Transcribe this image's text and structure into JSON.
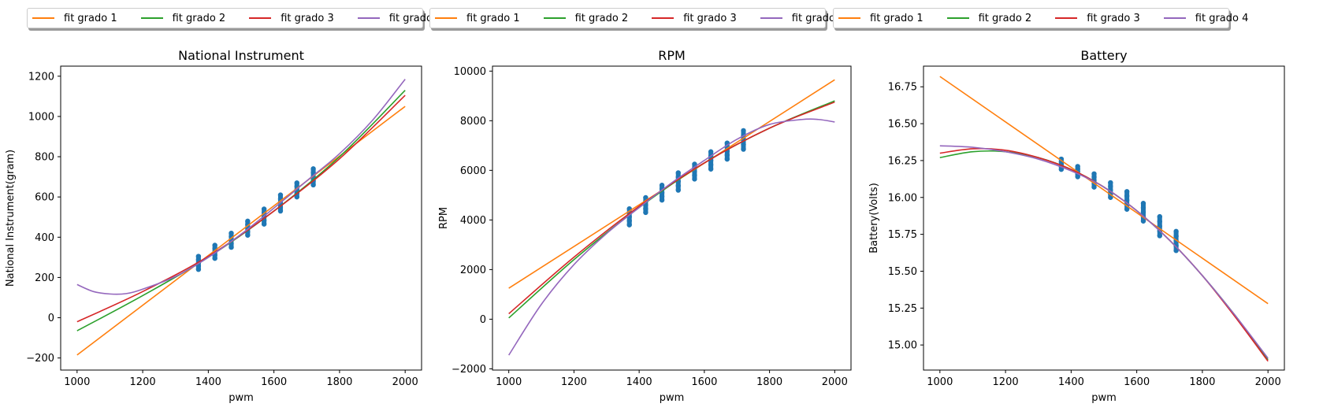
{
  "legend": {
    "entries": [
      {
        "label": "fit grado 1",
        "color": "#ff7f0e"
      },
      {
        "label": "fit grado 2",
        "color": "#2ca02c"
      },
      {
        "label": "fit grado 3",
        "color": "#d62728"
      },
      {
        "label": "fit grado 4",
        "color": "#9467bd"
      }
    ]
  },
  "chart_data": [
    {
      "type": "scatter+line",
      "title": "National Instrument",
      "xlabel": "pwm",
      "ylabel": "National Instrument(gram)",
      "xlim": [
        950,
        2050
      ],
      "ylim": [
        -260,
        1250
      ],
      "xticks": [
        1000,
        1200,
        1400,
        1600,
        1800,
        2000
      ],
      "yticks": [
        -200,
        0,
        200,
        400,
        600,
        800,
        1000,
        1200
      ],
      "scatter": {
        "color": "#1f77b4",
        "x": [
          1370,
          1420,
          1470,
          1520,
          1570,
          1620,
          1670,
          1720
        ],
        "ymin": [
          240,
          295,
          350,
          410,
          465,
          530,
          600,
          660
        ],
        "ymax": [
          305,
          360,
          420,
          480,
          540,
          610,
          670,
          740
        ]
      },
      "series": [
        {
          "name": "fit grado 1",
          "color": "#ff7f0e",
          "x": [
            1000,
            2000
          ],
          "y": [
            -185,
            1050
          ]
        },
        {
          "name": "fit grado 2",
          "color": "#2ca02c",
          "x": [
            1000,
            1200,
            1400,
            1600,
            1800,
            2000
          ],
          "y": [
            -65,
            110,
            300,
            530,
            800,
            1130
          ]
        },
        {
          "name": "fit grado 3",
          "color": "#d62728",
          "x": [
            1000,
            1200,
            1400,
            1600,
            1800,
            2000
          ],
          "y": [
            -20,
            130,
            305,
            530,
            790,
            1105
          ]
        },
        {
          "name": "fit grado 4",
          "color": "#9467bd",
          "x": [
            1000,
            1050,
            1100,
            1150,
            1200,
            1300,
            1400,
            1500,
            1600,
            1700,
            1800,
            1900,
            2000
          ],
          "y": [
            165,
            130,
            118,
            120,
            142,
            205,
            300,
            415,
            545,
            680,
            815,
            980,
            1185
          ]
        }
      ]
    },
    {
      "type": "scatter+line",
      "title": "RPM",
      "xlabel": "pwm",
      "ylabel": "RPM",
      "xlim": [
        950,
        2050
      ],
      "ylim": [
        -2050,
        10200
      ],
      "xticks": [
        1000,
        1200,
        1400,
        1600,
        1800,
        2000
      ],
      "yticks": [
        -2000,
        0,
        2000,
        4000,
        6000,
        8000,
        10000
      ],
      "scatter": {
        "color": "#1f77b4",
        "x": [
          1370,
          1420,
          1470,
          1520,
          1570,
          1620,
          1670,
          1720
        ],
        "ymin": [
          3800,
          4300,
          4800,
          5200,
          5650,
          6050,
          6450,
          6850
        ],
        "ymax": [
          4450,
          4900,
          5400,
          5900,
          6250,
          6750,
          7100,
          7600
        ]
      },
      "series": [
        {
          "name": "fit grado 1",
          "color": "#ff7f0e",
          "x": [
            1000,
            2000
          ],
          "y": [
            1250,
            9650
          ]
        },
        {
          "name": "fit grado 2",
          "color": "#2ca02c",
          "x": [
            1000,
            1200,
            1400,
            1600,
            1800,
            2000
          ],
          "y": [
            50,
            2400,
            4500,
            6300,
            7700,
            8800
          ]
        },
        {
          "name": "fit grado 3",
          "color": "#d62728",
          "x": [
            1000,
            1200,
            1400,
            1600,
            1800,
            2000
          ],
          "y": [
            220,
            2500,
            4550,
            6300,
            7700,
            8750
          ]
        },
        {
          "name": "fit grado 4",
          "color": "#9467bd",
          "x": [
            1000,
            1100,
            1200,
            1300,
            1400,
            1500,
            1600,
            1700,
            1800,
            1900,
            1950,
            2000
          ],
          "y": [
            -1450,
            600,
            2200,
            3450,
            4500,
            5500,
            6400,
            7250,
            7850,
            8050,
            8050,
            7950
          ]
        }
      ]
    },
    {
      "type": "scatter+line",
      "title": "Battery",
      "xlabel": "pwm",
      "ylabel": "Battery(Volts)",
      "xlim": [
        950,
        2050
      ],
      "ylim": [
        14.83,
        16.89
      ],
      "xticks": [
        1000,
        1200,
        1400,
        1600,
        1800,
        2000
      ],
      "yticks": [
        15.0,
        15.25,
        15.5,
        15.75,
        16.0,
        16.25,
        16.5,
        16.75
      ],
      "yticklabels": [
        "15.00",
        "15.25",
        "15.50",
        "15.75",
        "16.00",
        "16.25",
        "16.50",
        "16.75"
      ],
      "scatter": {
        "color": "#1f77b4",
        "x": [
          1370,
          1420,
          1470,
          1520,
          1570,
          1620,
          1670,
          1720
        ],
        "ymin": [
          16.19,
          16.14,
          16.07,
          16.0,
          15.92,
          15.84,
          15.74,
          15.64
        ],
        "ymax": [
          16.26,
          16.21,
          16.16,
          16.1,
          16.04,
          15.96,
          15.87,
          15.77
        ]
      },
      "series": [
        {
          "name": "fit grado 1",
          "color": "#ff7f0e",
          "x": [
            1000,
            2000
          ],
          "y": [
            16.82,
            15.28
          ]
        },
        {
          "name": "fit grado 2",
          "color": "#2ca02c",
          "x": [
            1000,
            1100,
            1200,
            1300,
            1400,
            1500,
            1600,
            1700,
            1800,
            1900,
            2000
          ],
          "y": [
            16.27,
            16.31,
            16.31,
            16.27,
            16.19,
            16.07,
            15.91,
            15.71,
            15.47,
            15.2,
            14.9
          ]
        },
        {
          "name": "fit grado 3",
          "color": "#d62728",
          "x": [
            1000,
            1100,
            1200,
            1300,
            1400,
            1500,
            1600,
            1700,
            1800,
            1900,
            2000
          ],
          "y": [
            16.3,
            16.33,
            16.32,
            16.27,
            16.19,
            16.07,
            15.91,
            15.71,
            15.47,
            15.19,
            14.89
          ]
        },
        {
          "name": "fit grado 4",
          "color": "#9467bd",
          "x": [
            1000,
            1100,
            1200,
            1300,
            1400,
            1500,
            1600,
            1700,
            1800,
            1900,
            2000
          ],
          "y": [
            16.35,
            16.34,
            16.31,
            16.26,
            16.18,
            16.07,
            15.91,
            15.71,
            15.47,
            15.2,
            14.91
          ]
        }
      ]
    }
  ]
}
